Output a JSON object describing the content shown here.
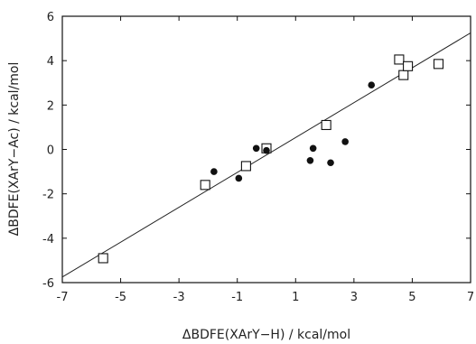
{
  "chart_data": {
    "type": "scatter",
    "title": "",
    "xlabel": "ΔBDFE(XArY−H) / kcal/mol",
    "ylabel": "ΔBDFE(XArY−Ac) / kcal/mol",
    "xlim": [
      -7,
      7
    ],
    "ylim": [
      -6,
      6
    ],
    "xticks": [
      "-7",
      "-5",
      "-3",
      "-1",
      "1",
      "3",
      "5",
      "7"
    ],
    "yticks": [
      "-6",
      "-4",
      "-2",
      "0",
      "2",
      "4",
      "6"
    ],
    "grid": false,
    "legend": "none",
    "series": [
      {
        "marker": "open-square",
        "points": [
          [
            -5.6,
            -4.9
          ],
          [
            -2.1,
            -1.6
          ],
          [
            -0.7,
            -0.75
          ],
          [
            0.0,
            0.05
          ],
          [
            2.05,
            1.1
          ],
          [
            4.55,
            4.05
          ],
          [
            4.7,
            3.35
          ],
          [
            4.85,
            3.75
          ],
          [
            5.9,
            3.85
          ]
        ]
      },
      {
        "marker": "filled-circle",
        "points": [
          [
            -1.8,
            -1.0
          ],
          [
            -0.95,
            -1.3
          ],
          [
            -0.35,
            0.05
          ],
          [
            0.0,
            -0.05
          ],
          [
            1.5,
            -0.5
          ],
          [
            1.6,
            0.05
          ],
          [
            2.2,
            -0.6
          ],
          [
            2.7,
            0.35
          ],
          [
            3.6,
            2.9
          ]
        ]
      }
    ],
    "fit_line": {
      "x": [
        -7,
        7
      ],
      "y": [
        -5.75,
        5.25
      ]
    }
  }
}
